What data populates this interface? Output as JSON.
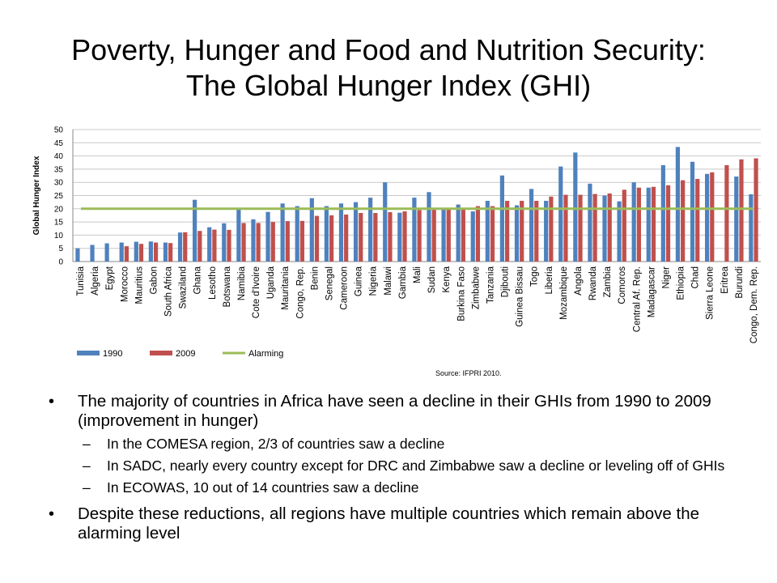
{
  "slide": {
    "title_line1": "Poverty, Hunger and Food and Nutrition Security:",
    "title_line2": "The Global Hunger Index (GHI)"
  },
  "bullets": {
    "b1": "The majority of countries in Africa have seen a decline in their GHIs from 1990 to 2009 (improvement in hunger)",
    "sub1": "In the COMESA region, 2/3 of countries saw a decline",
    "sub2": "In SADC, nearly every country except for DRC and Zimbabwe saw a decline or leveling off of GHIs",
    "sub3": "In ECOWAS, 10 out of 14 countries saw a decline",
    "b2": "Despite these reductions, all regions have multiple countries which remain above the alarming level"
  },
  "chart_data": {
    "type": "bar",
    "title": "",
    "xlabel": "",
    "ylabel": "Global Hunger Index",
    "ylim": [
      0,
      50
    ],
    "yticks": [
      "0",
      "5",
      "10",
      "15",
      "20",
      "25",
      "30",
      "35",
      "40",
      "45",
      "50"
    ],
    "grid": true,
    "legend_position": "bottom-left",
    "source": "Source: IFPRI 2010.",
    "categories": [
      "Tunisia",
      "Algeria",
      "Egypt",
      "Morocco",
      "Mauritius",
      "Gabon",
      "South Africa",
      "Swaziland",
      "Ghana",
      "Lesotho",
      "Botswana",
      "Namibia",
      "Cote d'Ivoire",
      "Uganda",
      "Mauritania",
      "Congo, Rep.",
      "Benin",
      "Senegal",
      "Cameroon",
      "Guinea",
      "Nigeria",
      "Malawi",
      "Gambia",
      "Mali",
      "Sudan",
      "Kenya",
      "Burkina Faso",
      "Zimbabwe",
      "Tanzania",
      "Djibouti",
      "Guinea Bissau",
      "Togo",
      "Liberia",
      "Mozambique",
      "Angola",
      "Rwanda",
      "Zambia",
      "Comoros",
      "Central Af. Rep.",
      "Madagascar",
      "Niger",
      "Ethiopia",
      "Chad",
      "Sierra Leone",
      "Eritrea",
      "Burundi",
      "Congo, Dem. Rep."
    ],
    "series": [
      {
        "name": "1990",
        "color": "#4f81bd",
        "values": [
          5,
          6.3,
          6.9,
          7.2,
          7.5,
          7.6,
          7.2,
          11,
          23.4,
          13,
          14.5,
          20,
          16,
          18.8,
          22,
          21,
          24,
          21,
          22,
          22.5,
          24.2,
          30,
          18.5,
          24.2,
          26.3,
          19.8,
          21.6,
          19,
          23,
          32.6,
          21.3,
          27.5,
          23,
          36,
          41.3,
          29.5,
          25,
          22.8,
          30,
          28,
          36.5,
          43.4,
          37.8,
          33.2,
          null,
          32.2,
          25.5
        ]
      },
      {
        "name": "2009",
        "color": "#c0504d",
        "values": [
          null,
          null,
          null,
          5.8,
          6.7,
          7.2,
          7.0,
          11.1,
          11.6,
          12.1,
          12.0,
          14.6,
          14.6,
          15.0,
          15.3,
          15.4,
          17.3,
          17.5,
          17.8,
          18.4,
          18.4,
          18.7,
          19.0,
          19.5,
          19.6,
          19.8,
          20.0,
          21.0,
          21.0,
          23.0,
          23.0,
          23.0,
          24.6,
          25.3,
          25.3,
          25.6,
          25.8,
          27.2,
          28.0,
          28.3,
          28.9,
          30.8,
          31.3,
          33.8,
          36.5,
          38.7,
          39.1
        ]
      },
      {
        "name": "Alarming",
        "color": "#9bbb59",
        "type": "line",
        "value": 20
      }
    ]
  }
}
